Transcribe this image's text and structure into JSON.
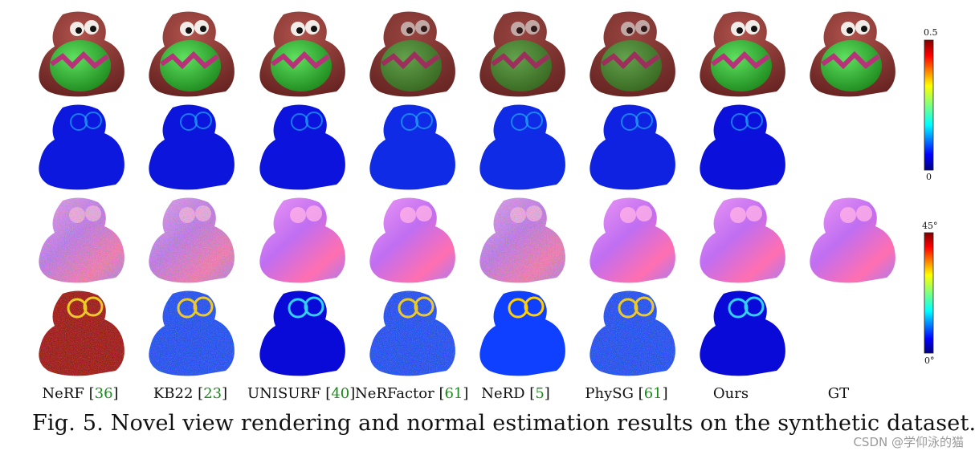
{
  "columns": [
    {
      "name": "NeRF",
      "ref": "36"
    },
    {
      "name": "KB22",
      "ref": "23"
    },
    {
      "name": "UNISURF",
      "ref": "40"
    },
    {
      "name": "NeRFactor",
      "ref": "61"
    },
    {
      "name": "NeRD",
      "ref": "5"
    },
    {
      "name": "PhySG",
      "ref": "61"
    },
    {
      "name": "Ours",
      "ref": ""
    },
    {
      "name": "GT",
      "ref": ""
    }
  ],
  "rows": [
    "rendering",
    "rendering-error",
    "normal",
    "normal-error"
  ],
  "colorbars": {
    "rendering_error": {
      "max": "0.5",
      "min": "0"
    },
    "normal_error": {
      "max": "45°",
      "min": "0°"
    }
  },
  "caption": "Fig. 5. Novel view rendering and normal estimation results on the synthetic dataset.",
  "watermark": "CSDN @学仰泳的猫",
  "colors": {
    "citation": "#1a8a1a",
    "jet_low": "#00007f",
    "jet_high": "#7f0000"
  }
}
